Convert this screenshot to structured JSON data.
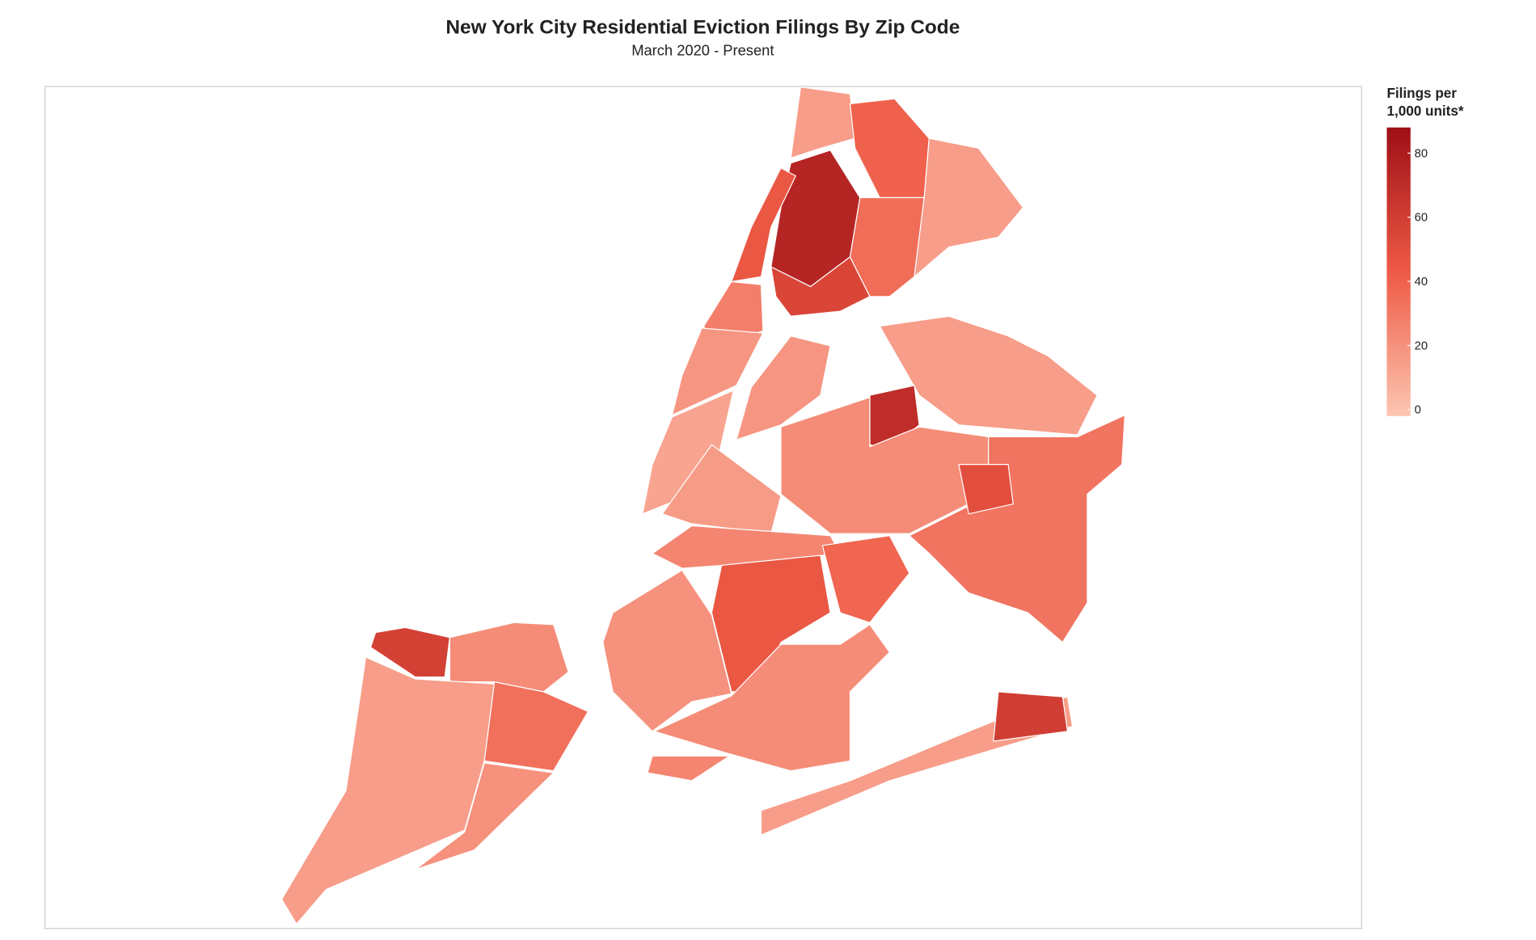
{
  "chart_data": {
    "type": "choropleth",
    "title": "New York City Residential Eviction Filings By Zip Code",
    "subtitle": "March 2020 - Present",
    "legend_title": [
      "Filings per",
      "1,000 units*"
    ],
    "colorscale": [
      "#fcc6b2",
      "#ee5a45",
      "#9e0f16"
    ],
    "clim": [
      -2,
      88
    ],
    "cticks": [
      0,
      20,
      40,
      60,
      80
    ],
    "values": [
      15,
      40,
      75,
      55,
      35,
      15,
      45,
      28,
      18,
      12,
      18,
      15,
      70,
      22,
      32,
      50,
      15,
      60,
      16,
      25,
      45,
      38,
      20,
      22,
      25,
      58,
      22,
      34,
      15,
      20
    ]
  }
}
